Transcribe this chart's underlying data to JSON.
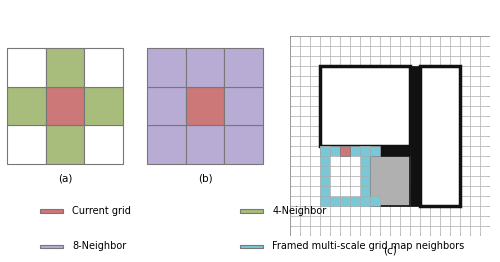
{
  "fig_width": 5.0,
  "fig_height": 2.62,
  "dpi": 100,
  "bg_color": "#ffffff",
  "colors": {
    "current": "#cc7878",
    "neighbor4": "#a8bc7c",
    "neighbor8": "#b8acd4",
    "framed": "#78c8d8",
    "gray_block": "#b0b0b0",
    "white": "#ffffff",
    "black": "#111111",
    "grid_line": "#777777",
    "thin_grid": "#aaaaaa"
  },
  "subplot_labels": [
    "(a)",
    "(b)",
    "(c)"
  ]
}
